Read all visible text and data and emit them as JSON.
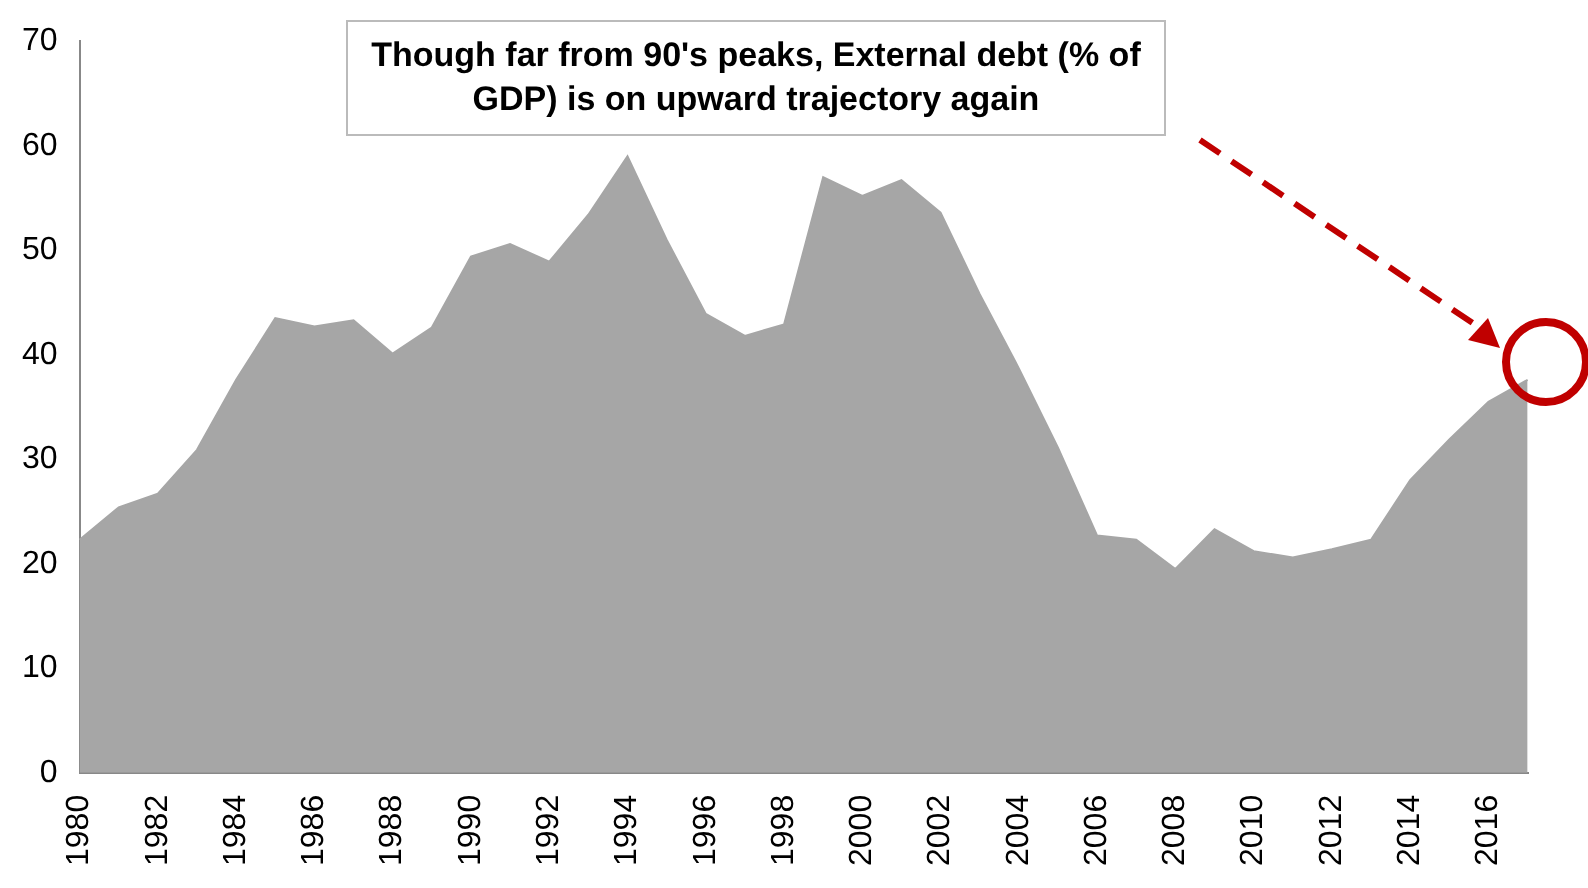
{
  "chart_data": {
    "type": "area",
    "categories": [
      "1980",
      null,
      "1982",
      null,
      "1984",
      null,
      "1986",
      null,
      "1988",
      null,
      "1990",
      null,
      "1992",
      null,
      "1994",
      null,
      "1996",
      null,
      "1998",
      null,
      "2000",
      null,
      "2002",
      null,
      "2004",
      null,
      "2006",
      null,
      "2008",
      null,
      "2010",
      null,
      "2012",
      null,
      "2014",
      null,
      "2016",
      null
    ],
    "series": [
      {
        "color": "#a6a6a6",
        "values": [
          22.3,
          25.4,
          26.7,
          30.9,
          37.6,
          43.5,
          42.7,
          43.3,
          40.1,
          42.6,
          49.4,
          50.6,
          48.9,
          53.4,
          59,
          51,
          43.9,
          41.8,
          42.9,
          57,
          55.2,
          56.7,
          53.6,
          45.8,
          38.7,
          31.1,
          22.7,
          22.3,
          19.5,
          23.3,
          21.2,
          20.6,
          21.4,
          22.3,
          28,
          31.9,
          35.5,
          37.6
        ]
      }
    ],
    "ylim": [
      0,
      70
    ],
    "yticks": [
      0,
      10,
      20,
      30,
      40,
      50,
      60,
      70
    ],
    "grid": false,
    "legend": false,
    "annotations": [
      "Though far from 90's peaks, External debt (% of GDP) is on upward trajectory again"
    ]
  }
}
